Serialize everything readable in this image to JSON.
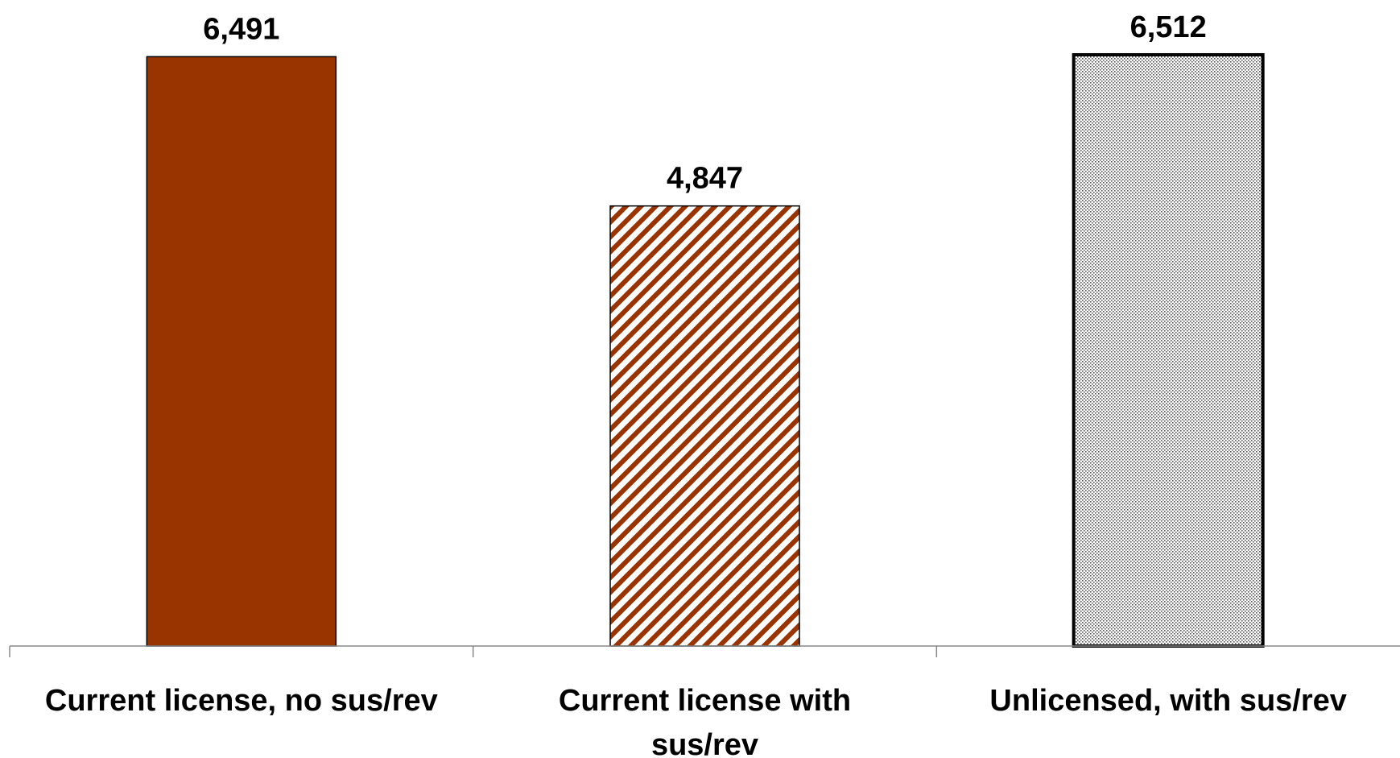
{
  "chart_data": {
    "type": "bar",
    "categories": [
      [
        "Current license, no sus/rev"
      ],
      [
        "Current license with",
        "sus/rev"
      ],
      [
        "Unlicensed, with sus/rev"
      ]
    ],
    "values": [
      6491,
      4847,
      6512
    ],
    "value_labels": [
      "6,491",
      "4,847",
      "6,512"
    ],
    "ylim": [
      0,
      6512
    ],
    "grid": false,
    "legend": "none",
    "bar_styles": [
      {
        "fill": "solid",
        "color": "#993300",
        "stroke": "#000000"
      },
      {
        "fill": "diagonal-stripes",
        "color": "#993300",
        "stroke": "#000000"
      },
      {
        "fill": "dots",
        "color": "#666666",
        "stroke": "#000000"
      }
    ]
  }
}
